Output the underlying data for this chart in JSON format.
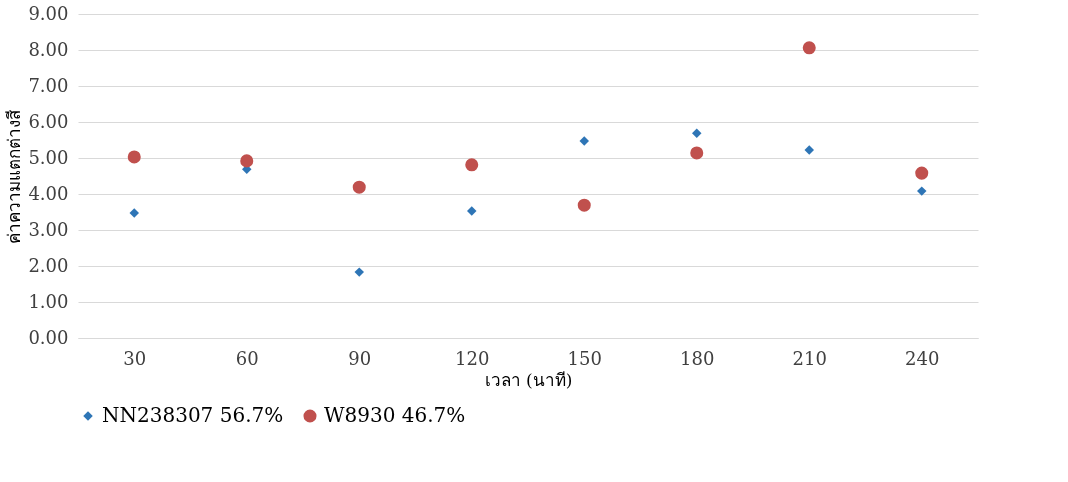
{
  "chart_data": {
    "type": "scatter",
    "xlabel": "เวลา (นาที)",
    "ylabel": "ค่าความแตกต่างสี",
    "categories": [
      "30",
      "60",
      "90",
      "120",
      "150",
      "180",
      "210",
      "240"
    ],
    "series": [
      {
        "name": "NN238307  56.7%",
        "color": "#2e75b6",
        "marker": "diamond",
        "values": [
          3.47,
          4.69,
          1.83,
          3.53,
          5.47,
          5.69,
          5.22,
          4.08
        ]
      },
      {
        "name": "W8930 46.7%",
        "color": "#c0504d",
        "marker": "circle",
        "values": [
          5.03,
          4.92,
          4.19,
          4.81,
          3.69,
          5.14,
          8.06,
          4.58
        ]
      }
    ],
    "ylim": [
      0,
      9
    ],
    "yticks": [
      {
        "value": 0,
        "label": "0.00"
      },
      {
        "value": 1,
        "label": "1.00"
      },
      {
        "value": 2,
        "label": "2.00"
      },
      {
        "value": 3,
        "label": "3.00"
      },
      {
        "value": 4,
        "label": "4.00"
      },
      {
        "value": 5,
        "label": "5.00"
      },
      {
        "value": 6,
        "label": "6.00"
      },
      {
        "value": 7,
        "label": "7.00"
      },
      {
        "value": 8,
        "label": "8.00"
      },
      {
        "value": 9,
        "label": "9.00"
      }
    ],
    "grid": "y",
    "legend": "bottom"
  }
}
